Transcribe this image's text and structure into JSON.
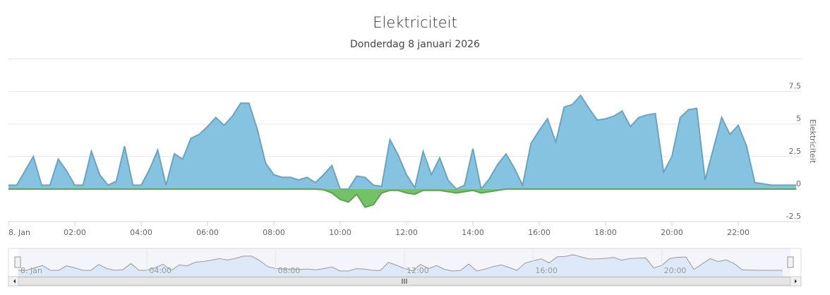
{
  "chart_data": {
    "type": "area",
    "title": "Elektriciteit",
    "subtitle": "Donderdag 8 januari 2026",
    "y_axis_title": "Elektriciteit",
    "x": [
      0,
      0.25,
      0.5,
      0.75,
      1,
      1.25,
      1.5,
      1.75,
      2,
      2.25,
      2.5,
      2.75,
      3,
      3.25,
      3.5,
      3.75,
      4,
      4.25,
      4.5,
      4.75,
      5,
      5.25,
      5.5,
      5.75,
      6,
      6.25,
      6.5,
      6.75,
      7,
      7.25,
      7.5,
      7.75,
      8,
      8.25,
      8.5,
      8.75,
      9,
      9.25,
      9.5,
      9.75,
      10,
      10.25,
      10.5,
      10.75,
      11,
      11.25,
      11.5,
      11.75,
      12,
      12.25,
      12.5,
      12.75,
      13,
      13.25,
      13.5,
      13.75,
      14,
      14.25,
      14.5,
      14.75,
      15,
      15.25,
      15.5,
      15.75,
      16,
      16.25,
      16.5,
      16.75,
      17,
      17.25,
      17.5,
      17.75,
      18,
      18.25,
      18.5,
      18.75,
      19,
      19.25,
      19.5,
      19.75,
      20,
      20.25,
      20.5,
      20.75,
      21,
      21.25,
      21.5,
      21.75,
      22,
      22.25,
      22.5,
      22.75,
      23,
      23.25,
      23.5,
      23.75
    ],
    "series": [
      {
        "color": "#7fc0df",
        "values": [
          0.3,
          0.3,
          1.4,
          2.5,
          0.3,
          0.3,
          2.3,
          1.4,
          0.3,
          0.3,
          2.9,
          1.1,
          0.3,
          0.6,
          3.3,
          0.3,
          0.3,
          1.5,
          3.0,
          0.3,
          2.7,
          2.3,
          3.9,
          4.2,
          4.8,
          5.5,
          4.9,
          5.6,
          6.6,
          6.6,
          4.6,
          2.0,
          1.1,
          0.9,
          0.9,
          0.7,
          0.9,
          0.5,
          1.1,
          1.8,
          0,
          0,
          1.0,
          0.9,
          0.3,
          0.2,
          3.8,
          2.6,
          1.1,
          0.1,
          2.9,
          1.1,
          2.4,
          0.7,
          0,
          0.3,
          3.1,
          0,
          0.8,
          1.9,
          2.7,
          1.6,
          0.3,
          3.5,
          4.5,
          5.4,
          3.6,
          6.3,
          6.5,
          7.2,
          6.2,
          5.3,
          5.4,
          5.6,
          6.0,
          4.8,
          5.5,
          5.7,
          5.8,
          1.3,
          2.5,
          5.5,
          6.1,
          6.2,
          0.7,
          3.1,
          5.5,
          4.2,
          4.9,
          3.3,
          0.5,
          0.4,
          0.3,
          0.3,
          0.3,
          0.3
        ]
      },
      {
        "color": "#6cbf5f",
        "values": [
          0,
          0,
          0,
          0,
          0,
          0,
          0,
          0,
          0,
          0,
          0,
          0,
          0,
          0,
          0,
          0,
          0,
          0,
          0,
          0,
          0,
          0,
          0,
          0,
          0,
          0,
          0,
          0,
          0,
          0,
          0,
          0,
          0,
          0,
          0,
          0,
          0,
          0,
          -0.05,
          -0.3,
          -0.8,
          -1.0,
          -0.4,
          -1.4,
          -1.2,
          -0.3,
          -0.1,
          -0.1,
          -0.3,
          -0.4,
          -0.1,
          -0.1,
          -0.1,
          -0.2,
          -0.3,
          -0.2,
          -0.1,
          -0.3,
          -0.2,
          -0.1,
          0,
          0,
          0,
          0,
          0,
          0,
          0,
          0,
          0,
          0,
          0,
          0,
          0,
          0,
          0,
          0,
          0,
          0,
          0,
          0,
          0,
          0,
          0,
          0,
          0,
          0,
          0,
          0,
          0,
          0,
          0,
          0,
          0,
          0,
          0,
          0
        ]
      }
    ],
    "xlim": [
      0,
      24
    ],
    "xticks": [
      {
        "value": 0,
        "label": "8. Jan"
      },
      {
        "value": 2,
        "label": "02:00"
      },
      {
        "value": 4,
        "label": "04:00"
      },
      {
        "value": 6,
        "label": "06:00"
      },
      {
        "value": 8,
        "label": "08:00"
      },
      {
        "value": 10,
        "label": "10:00"
      },
      {
        "value": 12,
        "label": "12:00"
      },
      {
        "value": 14,
        "label": "14:00"
      },
      {
        "value": 16,
        "label": "16:00"
      },
      {
        "value": 18,
        "label": "18:00"
      },
      {
        "value": 20,
        "label": "20:00"
      },
      {
        "value": 22,
        "label": "22:00"
      }
    ],
    "ylim": [
      -2.5,
      10
    ],
    "yticks": [
      -2.5,
      0,
      2.5,
      5,
      7.5
    ],
    "grid": true,
    "navigator": {
      "xticks": [
        {
          "value": 0,
          "label": "8. Jan"
        },
        {
          "value": 4,
          "label": "04:00"
        },
        {
          "value": 8,
          "label": "08:00"
        },
        {
          "value": 12,
          "label": "12:00"
        },
        {
          "value": 16,
          "label": "16:00"
        },
        {
          "value": 20,
          "label": "20:00"
        }
      ]
    }
  }
}
